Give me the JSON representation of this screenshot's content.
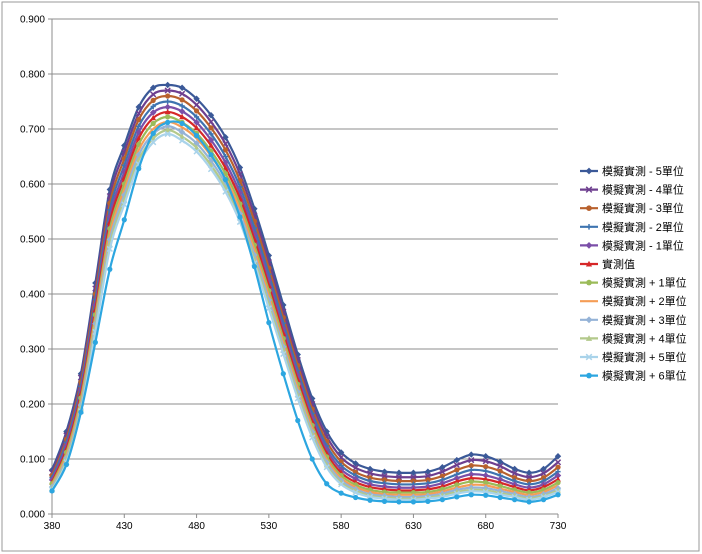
{
  "chart_data": {
    "type": "line",
    "title": "",
    "xlabel": "",
    "ylabel": "",
    "xlim": [
      380,
      730
    ],
    "ylim": [
      0,
      0.9
    ],
    "x_ticks": [
      "380",
      "430",
      "480",
      "530",
      "580",
      "630",
      "680",
      "730"
    ],
    "y_ticks": [
      "0.000",
      "0.100",
      "0.200",
      "0.300",
      "0.400",
      "0.500",
      "0.600",
      "0.700",
      "0.800",
      "0.900"
    ],
    "grid": "horizontal",
    "legend_position": "right",
    "x": [
      380,
      390,
      400,
      410,
      420,
      430,
      440,
      450,
      460,
      470,
      480,
      490,
      500,
      510,
      520,
      530,
      540,
      550,
      560,
      570,
      580,
      590,
      600,
      610,
      620,
      630,
      640,
      650,
      660,
      670,
      680,
      690,
      700,
      710,
      720,
      730
    ],
    "series": [
      {
        "name": "模擬實測 - 5單位",
        "color": "#3B5998",
        "marker": "diamond",
        "values": [
          0.08,
          0.15,
          0.255,
          0.42,
          0.59,
          0.67,
          0.74,
          0.775,
          0.78,
          0.775,
          0.755,
          0.725,
          0.685,
          0.63,
          0.555,
          0.47,
          0.38,
          0.29,
          0.21,
          0.15,
          0.112,
          0.092,
          0.082,
          0.077,
          0.075,
          0.075,
          0.077,
          0.085,
          0.098,
          0.108,
          0.105,
          0.095,
          0.082,
          0.075,
          0.082,
          0.105
        ]
      },
      {
        "name": "模擬實測 - 4單位",
        "color": "#6E3F8F",
        "marker": "x",
        "values": [
          0.075,
          0.143,
          0.248,
          0.41,
          0.578,
          0.658,
          0.728,
          0.763,
          0.77,
          0.764,
          0.744,
          0.713,
          0.673,
          0.618,
          0.543,
          0.458,
          0.368,
          0.28,
          0.2,
          0.141,
          0.103,
          0.084,
          0.074,
          0.069,
          0.067,
          0.067,
          0.069,
          0.077,
          0.089,
          0.098,
          0.096,
          0.087,
          0.074,
          0.067,
          0.074,
          0.094
        ]
      },
      {
        "name": "模擬實測 - 3單位",
        "color": "#B8612D",
        "marker": "circle",
        "values": [
          0.07,
          0.136,
          0.24,
          0.4,
          0.565,
          0.646,
          0.717,
          0.752,
          0.76,
          0.753,
          0.733,
          0.702,
          0.662,
          0.606,
          0.532,
          0.447,
          0.357,
          0.27,
          0.191,
          0.132,
          0.095,
          0.076,
          0.066,
          0.062,
          0.06,
          0.06,
          0.062,
          0.069,
          0.08,
          0.088,
          0.086,
          0.078,
          0.066,
          0.06,
          0.066,
          0.085
        ]
      },
      {
        "name": "模擬實測 - 2單位",
        "color": "#3E74B0",
        "marker": "plus",
        "values": [
          0.066,
          0.13,
          0.232,
          0.39,
          0.553,
          0.634,
          0.705,
          0.741,
          0.75,
          0.742,
          0.722,
          0.691,
          0.65,
          0.595,
          0.52,
          0.436,
          0.347,
          0.261,
          0.183,
          0.124,
          0.088,
          0.07,
          0.06,
          0.056,
          0.054,
          0.054,
          0.056,
          0.062,
          0.072,
          0.08,
          0.078,
          0.07,
          0.06,
          0.054,
          0.06,
          0.077
        ]
      },
      {
        "name": "模擬實測 - 1單位",
        "color": "#7B4FA8",
        "marker": "diamond",
        "values": [
          0.062,
          0.124,
          0.225,
          0.38,
          0.541,
          0.622,
          0.694,
          0.73,
          0.74,
          0.732,
          0.712,
          0.68,
          0.639,
          0.584,
          0.509,
          0.425,
          0.337,
          0.252,
          0.175,
          0.117,
          0.081,
          0.064,
          0.054,
          0.05,
          0.048,
          0.048,
          0.05,
          0.056,
          0.065,
          0.072,
          0.07,
          0.063,
          0.054,
          0.048,
          0.054,
          0.07
        ]
      },
      {
        "name": "實測值",
        "color": "#D62728",
        "marker": "triangle",
        "values": [
          0.058,
          0.118,
          0.218,
          0.371,
          0.53,
          0.611,
          0.683,
          0.72,
          0.731,
          0.722,
          0.702,
          0.67,
          0.629,
          0.574,
          0.499,
          0.415,
          0.328,
          0.244,
          0.168,
          0.11,
          0.075,
          0.058,
          0.049,
          0.045,
          0.043,
          0.043,
          0.045,
          0.05,
          0.059,
          0.065,
          0.063,
          0.057,
          0.049,
          0.043,
          0.049,
          0.063
        ]
      },
      {
        "name": "模擬實測 + 1單位",
        "color": "#9BBB59",
        "marker": "circle",
        "values": [
          0.055,
          0.112,
          0.211,
          0.362,
          0.519,
          0.6,
          0.672,
          0.71,
          0.722,
          0.712,
          0.692,
          0.66,
          0.619,
          0.564,
          0.489,
          0.406,
          0.319,
          0.236,
          0.161,
          0.104,
          0.07,
          0.053,
          0.044,
          0.04,
          0.039,
          0.039,
          0.04,
          0.045,
          0.053,
          0.059,
          0.057,
          0.051,
          0.044,
          0.039,
          0.044,
          0.057
        ]
      },
      {
        "name": "模擬實測 + 2單位",
        "color": "#F59D56",
        "marker": "none",
        "values": [
          0.052,
          0.107,
          0.204,
          0.354,
          0.509,
          0.59,
          0.662,
          0.7,
          0.713,
          0.703,
          0.683,
          0.651,
          0.61,
          0.555,
          0.48,
          0.397,
          0.311,
          0.229,
          0.155,
          0.099,
          0.065,
          0.049,
          0.04,
          0.036,
          0.035,
          0.035,
          0.036,
          0.041,
          0.048,
          0.053,
          0.052,
          0.046,
          0.04,
          0.035,
          0.04,
          0.052
        ]
      },
      {
        "name": "模擬實測 + 3單位",
        "color": "#95B3D7",
        "marker": "diamond",
        "values": [
          0.049,
          0.102,
          0.198,
          0.346,
          0.499,
          0.58,
          0.653,
          0.691,
          0.705,
          0.694,
          0.674,
          0.642,
          0.601,
          0.546,
          0.471,
          0.389,
          0.304,
          0.222,
          0.149,
          0.094,
          0.061,
          0.045,
          0.036,
          0.033,
          0.031,
          0.031,
          0.033,
          0.037,
          0.044,
          0.048,
          0.047,
          0.042,
          0.036,
          0.031,
          0.036,
          0.047
        ]
      },
      {
        "name": "模擬實測 + 4單位",
        "color": "#B3C98B",
        "marker": "triangle",
        "values": [
          0.046,
          0.098,
          0.192,
          0.338,
          0.49,
          0.571,
          0.644,
          0.683,
          0.698,
          0.686,
          0.666,
          0.634,
          0.593,
          0.538,
          0.463,
          0.381,
          0.297,
          0.216,
          0.144,
          0.089,
          0.057,
          0.042,
          0.033,
          0.03,
          0.028,
          0.028,
          0.03,
          0.034,
          0.04,
          0.044,
          0.043,
          0.038,
          0.033,
          0.028,
          0.033,
          0.043
        ]
      },
      {
        "name": "模擬實測 + 5單位",
        "color": "#A9D3EA",
        "marker": "x",
        "values": [
          0.044,
          0.094,
          0.187,
          0.331,
          0.482,
          0.563,
          0.636,
          0.676,
          0.691,
          0.679,
          0.659,
          0.627,
          0.586,
          0.531,
          0.456,
          0.374,
          0.291,
          0.21,
          0.139,
          0.085,
          0.054,
          0.039,
          0.031,
          0.028,
          0.026,
          0.026,
          0.028,
          0.031,
          0.037,
          0.041,
          0.04,
          0.035,
          0.031,
          0.026,
          0.031,
          0.04
        ]
      },
      {
        "name": "模擬實測 + 6單位",
        "color": "#2CA6E0",
        "marker": "circle",
        "values": [
          0.042,
          0.09,
          0.185,
          0.312,
          0.445,
          0.535,
          0.628,
          0.692,
          0.712,
          0.71,
          0.688,
          0.653,
          0.608,
          0.54,
          0.45,
          0.348,
          0.255,
          0.17,
          0.1,
          0.055,
          0.038,
          0.03,
          0.025,
          0.023,
          0.022,
          0.022,
          0.023,
          0.026,
          0.031,
          0.035,
          0.034,
          0.03,
          0.026,
          0.022,
          0.026,
          0.035
        ]
      }
    ]
  }
}
